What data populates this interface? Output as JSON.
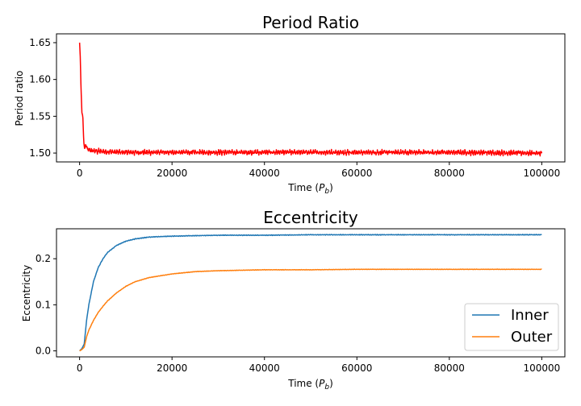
{
  "chart_data": [
    {
      "type": "line",
      "title": "Period Ratio",
      "xlabel": "Time (",
      "xlabel_sym": "P",
      "xlabel_sub": "b",
      "xlabel_end": ")",
      "ylabel": "Period ratio",
      "xlim": [
        -5000,
        105000
      ],
      "ylim": [
        1.488,
        1.662
      ],
      "xticks": [
        0,
        20000,
        40000,
        60000,
        80000,
        100000
      ],
      "yticks": [
        1.5,
        1.55,
        1.6,
        1.65
      ],
      "xtick_labels": [
        "0",
        "20000",
        "40000",
        "60000",
        "80000",
        "100000"
      ],
      "ytick_labels": [
        "1.50",
        "1.55",
        "1.60",
        "1.65"
      ],
      "grid": false,
      "series": [
        {
          "color": "#ff0000",
          "x": [
            0,
            150,
            300,
            500,
            700,
            900,
            1100,
            1300,
            1600,
            2000,
            3000,
            5000,
            10000,
            20000,
            40000,
            60000,
            80000,
            100000
          ],
          "y": [
            1.65,
            1.63,
            1.59,
            1.555,
            1.55,
            1.515,
            1.505,
            1.512,
            1.506,
            1.504,
            1.503,
            1.502,
            1.501,
            1.501,
            1.501,
            1.501,
            1.501,
            1.5
          ],
          "noise": 0.0035
        }
      ]
    },
    {
      "type": "line",
      "title": "Eccentricity",
      "xlabel": "Time (",
      "xlabel_sym": "P",
      "xlabel_sub": "b",
      "xlabel_end": ")",
      "ylabel": "Eccentricity",
      "xlim": [
        -5000,
        105000
      ],
      "ylim": [
        -0.013,
        0.265
      ],
      "xticks": [
        0,
        20000,
        40000,
        60000,
        80000,
        100000
      ],
      "yticks": [
        0.0,
        0.1,
        0.2
      ],
      "xtick_labels": [
        "0",
        "20000",
        "40000",
        "60000",
        "80000",
        "100000"
      ],
      "ytick_labels": [
        "0.0",
        "0.1",
        "0.2"
      ],
      "grid": false,
      "legend": "lower-right",
      "series": [
        {
          "name": "Inner",
          "color": "#1f77b4",
          "x": [
            0,
            500,
            1000,
            1500,
            2000,
            3000,
            4000,
            5000,
            6000,
            8000,
            10000,
            12000,
            15000,
            20000,
            25000,
            30000,
            40000,
            50000,
            60000,
            80000,
            100000
          ],
          "y": [
            0.0,
            0.005,
            0.015,
            0.065,
            0.1,
            0.15,
            0.18,
            0.199,
            0.213,
            0.229,
            0.238,
            0.243,
            0.247,
            0.249,
            0.25,
            0.251,
            0.251,
            0.252,
            0.252,
            0.252,
            0.252
          ],
          "noise": 0.0008
        },
        {
          "name": "Outer",
          "color": "#ff7f0e",
          "x": [
            0,
            500,
            1000,
            1500,
            2000,
            3000,
            4000,
            5000,
            6000,
            8000,
            10000,
            12000,
            15000,
            20000,
            25000,
            30000,
            40000,
            50000,
            60000,
            80000,
            100000
          ],
          "y": [
            0.0,
            0.003,
            0.008,
            0.03,
            0.045,
            0.066,
            0.083,
            0.096,
            0.108,
            0.126,
            0.14,
            0.15,
            0.159,
            0.167,
            0.172,
            0.174,
            0.176,
            0.176,
            0.177,
            0.177,
            0.177
          ],
          "noise": 0.0005
        }
      ]
    }
  ]
}
